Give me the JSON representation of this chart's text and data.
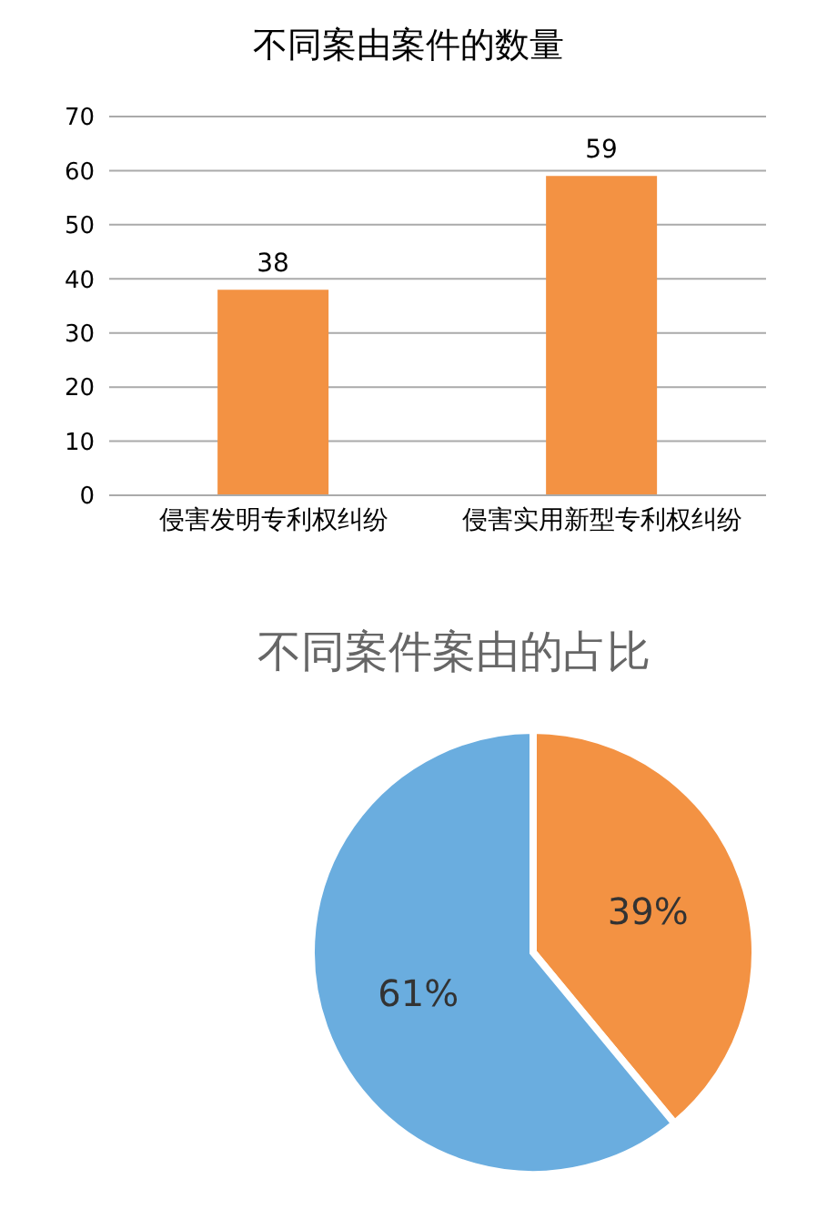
{
  "chart_data": [
    {
      "type": "bar",
      "title": "不同案由案件的数量",
      "categories": [
        "侵害发明专利权纠纷",
        "侵害实用新型专利权纠纷"
      ],
      "values": [
        38,
        59
      ],
      "color": "#f39243",
      "ylim": [
        0,
        70
      ],
      "yticks": [
        0,
        10,
        20,
        30,
        40,
        50,
        60,
        70
      ],
      "grid": "y",
      "data_labels": true
    },
    {
      "type": "pie",
      "title": "不同案件案由的占比",
      "categories": [
        null,
        null
      ],
      "values": [
        39,
        61
      ],
      "colors": [
        "#f39243",
        "#6aaddf"
      ],
      "value_labels": [
        "39%",
        "61%"
      ]
    }
  ]
}
